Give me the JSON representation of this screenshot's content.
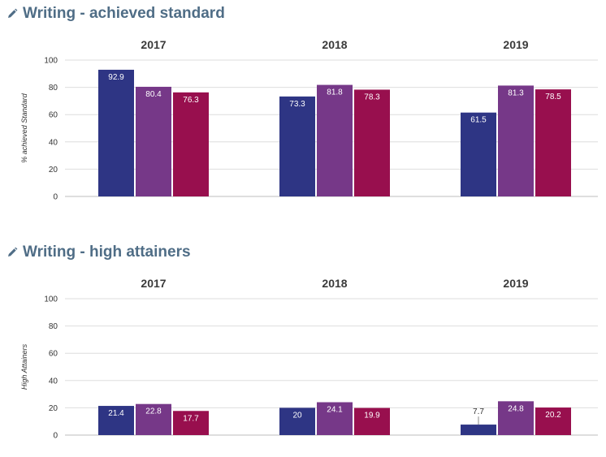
{
  "colors": {
    "title": "#4f6d86",
    "series_1": "#2e3584",
    "series_2": "#763888",
    "series_3": "#980f4e"
  },
  "charts": [
    {
      "title": "Writing - achieved standard",
      "icon": "pencil-icon"
    },
    {
      "title": "Writing - high attainers",
      "icon": "pencil-icon"
    }
  ],
  "chart_data": [
    {
      "type": "bar",
      "title": "Writing - achieved standard",
      "ylabel": "% achieved Standard",
      "ylim": [
        0,
        100
      ],
      "yticks": [
        0,
        20,
        40,
        60,
        80,
        100
      ],
      "categories": [
        "2017",
        "2018",
        "2019"
      ],
      "grid": true,
      "series": [
        {
          "color": "#2e3584",
          "values": [
            92.9,
            73.3,
            61.5
          ]
        },
        {
          "color": "#763888",
          "values": [
            80.4,
            81.8,
            81.3
          ]
        },
        {
          "color": "#980f4e",
          "values": [
            76.3,
            78.3,
            78.5
          ]
        }
      ]
    },
    {
      "type": "bar",
      "title": "Writing - high attainers",
      "ylabel": "High Attainers",
      "ylim": [
        0,
        100
      ],
      "yticks": [
        0,
        20,
        40,
        60,
        80,
        100
      ],
      "categories": [
        "2017",
        "2018",
        "2019"
      ],
      "grid": true,
      "series": [
        {
          "color": "#2e3584",
          "values": [
            21.4,
            20,
            7.7
          ]
        },
        {
          "color": "#763888",
          "values": [
            22.8,
            24.1,
            24.8
          ]
        },
        {
          "color": "#980f4e",
          "values": [
            17.7,
            19.9,
            20.2
          ]
        }
      ]
    }
  ]
}
